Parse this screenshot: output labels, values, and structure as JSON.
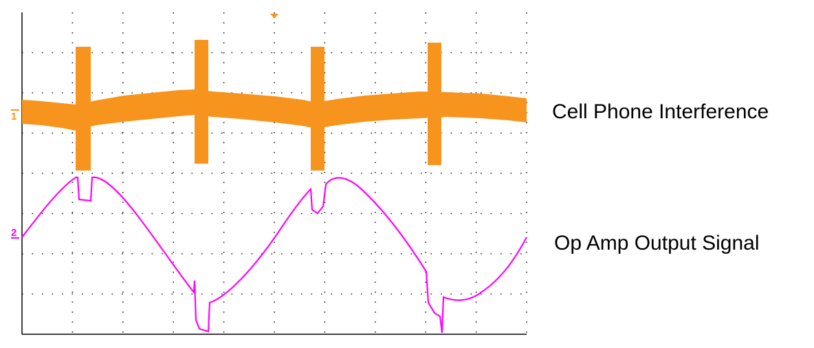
{
  "traces": [
    {
      "marker": "1",
      "label": "Cell Phone Interference"
    },
    {
      "marker": "2",
      "label": "Op Amp Output Signal"
    }
  ]
}
